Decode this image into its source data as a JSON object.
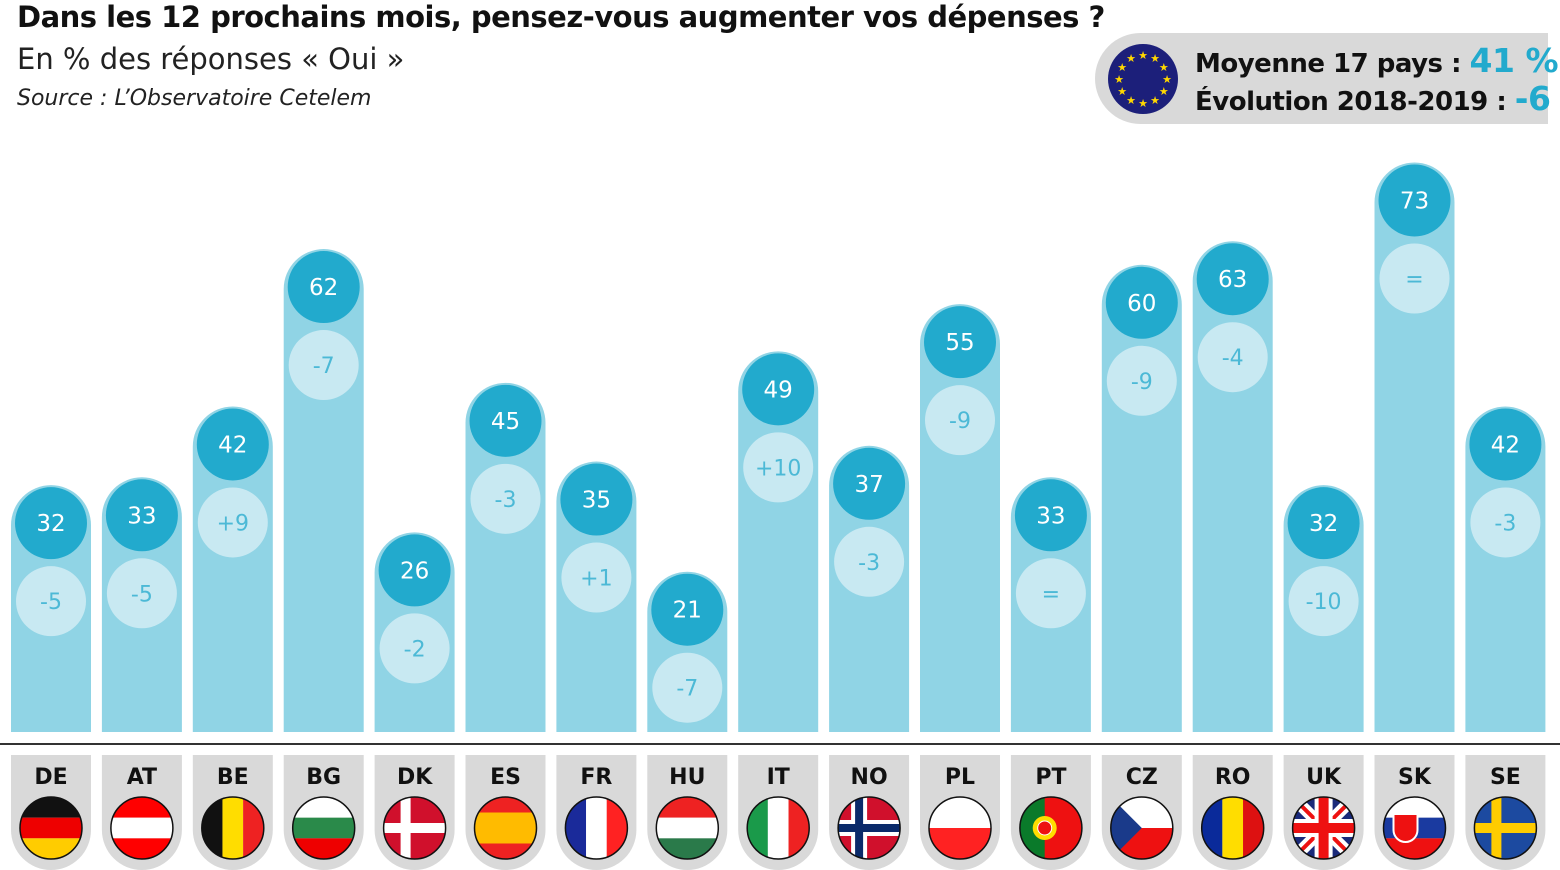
{
  "header": {
    "title": "Dans les 12 prochains mois, pensez-vous augmenter vos dépenses ?",
    "subtitle": "En % des réponses « Oui »",
    "source": "Source : L’Observatoire Cetelem"
  },
  "summary": {
    "avg_label": "Moyenne 17 pays : ",
    "avg_value": "41 %",
    "evo_label": "Évolution 2018-2019 : ",
    "evo_value": "-6",
    "icon": "eu-flag-icon"
  },
  "colors": {
    "bar": "#90d4e5",
    "value_circle": "#22aacd",
    "change_circle": "#c8e9f2",
    "change_text": "#4cb9d6",
    "tab": "#d9d9d9"
  },
  "chart_data": {
    "type": "bar",
    "title": "Dans les 12 prochains mois, pensez-vous augmenter vos dépenses ?",
    "ylabel": "% Oui",
    "ylim": [
      0,
      75
    ],
    "categories": [
      "DE",
      "AT",
      "BE",
      "BG",
      "DK",
      "ES",
      "FR",
      "HU",
      "IT",
      "NO",
      "PL",
      "PT",
      "CZ",
      "RO",
      "UK",
      "SK",
      "SE"
    ],
    "values": [
      32,
      33,
      42,
      62,
      26,
      45,
      35,
      21,
      49,
      37,
      55,
      33,
      60,
      63,
      32,
      73,
      42
    ],
    "changes": [
      "-5",
      "-5",
      "+9",
      "-7",
      "-2",
      "-3",
      "+1",
      "-7",
      "+10",
      "-3",
      "-9",
      "=",
      "-9",
      "-4",
      "-10",
      "=",
      "-3"
    ]
  }
}
